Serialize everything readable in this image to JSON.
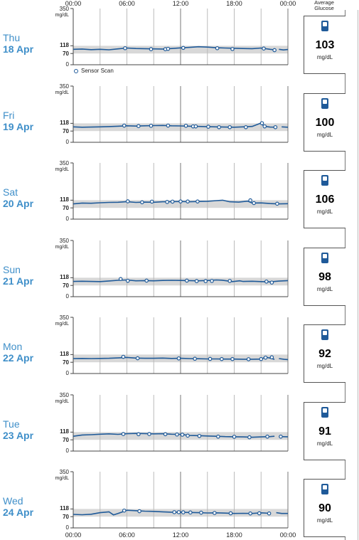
{
  "chart_data": {
    "type": "line",
    "x_ticks": [
      "00:00",
      "06:00",
      "12:00",
      "18:00",
      "00:00"
    ],
    "y_ticks": [
      0,
      70,
      118,
      350
    ],
    "y_unit": "mg/dL",
    "target_range": [
      70,
      118
    ],
    "ylim": [
      0,
      350
    ],
    "xlim_hours": [
      0,
      24
    ],
    "legend": "Sensor Scan",
    "average_header": [
      "Average",
      "Glucose"
    ],
    "days": [
      {
        "dow": "Thu",
        "date": "18 Apr",
        "avg": "103",
        "unit": "mg/dL",
        "trace": [
          [
            0,
            96
          ],
          [
            1,
            98
          ],
          [
            2,
            94
          ],
          [
            3,
            96
          ],
          [
            4,
            93
          ],
          [
            5,
            99
          ],
          [
            6,
            104
          ],
          [
            7,
            101
          ],
          [
            8,
            100
          ],
          [
            9,
            99
          ],
          [
            10,
            98
          ],
          [
            11,
            101
          ],
          [
            12,
            105
          ],
          [
            13,
            108
          ],
          [
            14,
            112
          ],
          [
            15,
            110
          ],
          [
            16,
            106
          ],
          [
            17,
            104
          ],
          [
            18,
            103
          ],
          [
            19,
            101
          ],
          [
            20,
            100
          ],
          [
            21,
            104
          ],
          [
            22,
            96
          ],
          [
            22.5,
            93
          ]
        ],
        "trace2": [
          [
            23,
            96
          ],
          [
            23.5,
            92
          ],
          [
            24,
            95
          ]
        ],
        "scans": [
          [
            5.8,
            103
          ],
          [
            8.7,
            97
          ],
          [
            10.3,
            97
          ],
          [
            10.6,
            99
          ],
          [
            12.3,
            105
          ],
          [
            16.1,
            103
          ],
          [
            17.8,
            98
          ],
          [
            21.3,
            101
          ],
          [
            22.5,
            91
          ]
        ]
      },
      {
        "dow": "Fri",
        "date": "19 Apr",
        "avg": "100",
        "unit": "mg/dL",
        "trace": [
          [
            0,
            96
          ],
          [
            1,
            94
          ],
          [
            2,
            95
          ],
          [
            3,
            96
          ],
          [
            4,
            98
          ],
          [
            5,
            100
          ],
          [
            6,
            103
          ],
          [
            7,
            101
          ],
          [
            8,
            103
          ],
          [
            9,
            104
          ],
          [
            10,
            105
          ],
          [
            11,
            103
          ],
          [
            12,
            102
          ],
          [
            13,
            100
          ],
          [
            14,
            99
          ],
          [
            15,
            97
          ],
          [
            16,
            96
          ],
          [
            17,
            95
          ],
          [
            18,
            94
          ],
          [
            19,
            96
          ],
          [
            20,
            99
          ],
          [
            21,
            120
          ],
          [
            21.3,
            100
          ],
          [
            22,
            95
          ],
          [
            22.6,
            94
          ]
        ],
        "trace2": [
          [
            23.3,
            96
          ],
          [
            24,
            94
          ]
        ],
        "scans": [
          [
            5.7,
            104
          ],
          [
            7.3,
            101
          ],
          [
            8.7,
            103
          ],
          [
            10.6,
            104
          ],
          [
            12.6,
            103
          ],
          [
            13.4,
            99
          ],
          [
            13.7,
            99
          ],
          [
            15.1,
            97
          ],
          [
            16.3,
            94
          ],
          [
            17.5,
            94
          ],
          [
            19.3,
            94
          ],
          [
            21.1,
            119
          ],
          [
            21.4,
            99
          ],
          [
            22.6,
            94
          ]
        ]
      },
      {
        "dow": "Sat",
        "date": "20 Apr",
        "avg": "106",
        "unit": "mg/dL",
        "trace": [
          [
            0,
            95
          ],
          [
            1,
            100
          ],
          [
            2,
            99
          ],
          [
            3,
            102
          ],
          [
            4,
            104
          ],
          [
            5,
            105
          ],
          [
            6,
            109
          ],
          [
            7,
            104
          ],
          [
            8,
            106
          ],
          [
            9,
            105
          ],
          [
            10,
            108
          ],
          [
            11,
            109
          ],
          [
            12,
            110
          ],
          [
            13,
            108
          ],
          [
            14,
            110
          ],
          [
            15,
            111
          ],
          [
            16,
            115
          ],
          [
            16.7,
            118
          ],
          [
            17.5,
            108
          ],
          [
            18.5,
            106
          ],
          [
            19.5,
            112
          ],
          [
            20,
            100
          ],
          [
            21,
            101
          ],
          [
            22,
            97
          ],
          [
            23,
            95
          ],
          [
            24,
            96
          ]
        ],
        "scans": [
          [
            6.1,
            111
          ],
          [
            7.7,
            105
          ],
          [
            8.8,
            109
          ],
          [
            10.5,
            107
          ],
          [
            11.1,
            109
          ],
          [
            12.0,
            110
          ],
          [
            12.8,
            110
          ],
          [
            13.9,
            110
          ],
          [
            19.8,
            117
          ],
          [
            20.2,
            100
          ],
          [
            22.8,
            96
          ]
        ]
      },
      {
        "dow": "Sun",
        "date": "21 Apr",
        "avg": "98",
        "unit": "mg/dL",
        "trace": [
          [
            0,
            95
          ],
          [
            1,
            96
          ],
          [
            2,
            95
          ],
          [
            3,
            94
          ],
          [
            4,
            98
          ],
          [
            5,
            102
          ],
          [
            6,
            104
          ],
          [
            7,
            99
          ],
          [
            8,
            100
          ],
          [
            9,
            99
          ],
          [
            10,
            101
          ],
          [
            11,
            102
          ],
          [
            12,
            101
          ],
          [
            13,
            100
          ],
          [
            14,
            99
          ],
          [
            15,
            101
          ],
          [
            16,
            104
          ],
          [
            16.6,
            103
          ],
          [
            17.3,
            98
          ],
          [
            17.8,
            94
          ],
          [
            18.6,
            99
          ],
          [
            19,
            95
          ],
          [
            20,
            96
          ],
          [
            21,
            94
          ],
          [
            22,
            92
          ],
          [
            23,
            97
          ],
          [
            24,
            100
          ]
        ],
        "scans": [
          [
            5.3,
            110
          ],
          [
            6.1,
            99
          ],
          [
            8.2,
            100
          ],
          [
            12.7,
            100
          ],
          [
            13.8,
            97
          ],
          [
            14.8,
            97
          ],
          [
            15.5,
            98
          ],
          [
            17.5,
            98
          ],
          [
            21.6,
            94
          ],
          [
            22.2,
            88
          ]
        ]
      },
      {
        "dow": "Mon",
        "date": "22 Apr",
        "avg": "92",
        "unit": "mg/dL",
        "trace": [
          [
            0,
            93
          ],
          [
            1,
            94
          ],
          [
            2,
            93
          ],
          [
            3,
            94
          ],
          [
            4,
            95
          ],
          [
            5,
            97
          ],
          [
            6,
            100
          ],
          [
            7,
            96
          ],
          [
            8,
            95
          ],
          [
            9,
            95
          ],
          [
            10,
            96
          ],
          [
            11,
            94
          ],
          [
            12,
            95
          ],
          [
            13,
            93
          ],
          [
            14,
            92
          ],
          [
            15,
            91
          ],
          [
            16,
            91
          ],
          [
            17,
            90
          ],
          [
            18,
            90
          ],
          [
            19,
            89
          ],
          [
            20,
            89
          ],
          [
            21,
            90
          ],
          [
            21.5,
            102
          ],
          [
            22,
            96
          ],
          [
            22.5,
            88
          ]
        ],
        "trace2": [
          [
            23,
            93
          ],
          [
            23.6,
            88
          ],
          [
            24,
            87
          ]
        ],
        "scans": [
          [
            5.6,
            104
          ],
          [
            7.2,
            95
          ],
          [
            11.8,
            94
          ],
          [
            13.6,
            92
          ],
          [
            15.3,
            91
          ],
          [
            16.6,
            90
          ],
          [
            17.8,
            90
          ],
          [
            19.6,
            89
          ],
          [
            21.0,
            90
          ],
          [
            21.5,
            99
          ],
          [
            22.2,
            101
          ]
        ]
      },
      {
        "dow": "Tue",
        "date": "23 Apr",
        "avg": "91",
        "unit": "mg/dL",
        "trace": [
          [
            0,
            92
          ],
          [
            1,
            100
          ],
          [
            2,
            102
          ],
          [
            3,
            105
          ],
          [
            4,
            107
          ],
          [
            5,
            104
          ],
          [
            6,
            108
          ],
          [
            7,
            110
          ],
          [
            8,
            109
          ],
          [
            9,
            107
          ],
          [
            10,
            108
          ],
          [
            11,
            105
          ],
          [
            12,
            104
          ],
          [
            13,
            97
          ],
          [
            14,
            96
          ],
          [
            15,
            94
          ],
          [
            16,
            92
          ],
          [
            17,
            90
          ],
          [
            18,
            89
          ],
          [
            19,
            88
          ],
          [
            20,
            86
          ],
          [
            21,
            88
          ],
          [
            22,
            90
          ],
          [
            22.5,
            92
          ]
        ],
        "trace2": [
          [
            23,
            90
          ],
          [
            24,
            89
          ]
        ],
        "scans": [
          [
            5.6,
            106
          ],
          [
            7.3,
            105
          ],
          [
            8.5,
            106
          ],
          [
            10.3,
            105
          ],
          [
            11.6,
            103
          ],
          [
            12.2,
            102
          ],
          [
            12.8,
            96
          ],
          [
            14.1,
            94
          ],
          [
            16.2,
            90
          ],
          [
            18.0,
            89
          ],
          [
            19.7,
            86
          ],
          [
            21.7,
            90
          ],
          [
            23.2,
            90
          ]
        ]
      },
      {
        "dow": "Wed",
        "date": "24 Apr",
        "avg": "90",
        "unit": "mg/dL",
        "trace": [
          [
            0,
            84
          ],
          [
            1,
            82
          ],
          [
            2,
            85
          ],
          [
            3,
            95
          ],
          [
            4,
            100
          ],
          [
            4.5,
            81
          ],
          [
            5,
            90
          ],
          [
            6,
            110
          ],
          [
            7,
            107
          ],
          [
            8,
            104
          ],
          [
            9,
            103
          ],
          [
            10,
            100
          ],
          [
            11,
            98
          ],
          [
            12,
            97
          ],
          [
            13,
            96
          ],
          [
            14,
            95
          ],
          [
            15,
            93
          ],
          [
            16,
            94
          ],
          [
            17,
            92
          ],
          [
            18,
            90
          ],
          [
            19,
            91
          ],
          [
            20,
            90
          ],
          [
            21,
            94
          ],
          [
            22,
            91
          ]
        ],
        "trace2": [
          [
            22.7,
            95
          ],
          [
            23.3,
            90
          ],
          [
            24,
            90
          ]
        ],
        "scans": [
          [
            5.7,
            108
          ],
          [
            7.4,
            104
          ],
          [
            11.3,
            98
          ],
          [
            11.8,
            98
          ],
          [
            12.3,
            97
          ],
          [
            13.1,
            96
          ],
          [
            14.3,
            95
          ],
          [
            15.8,
            93
          ],
          [
            17.6,
            91
          ],
          [
            19.8,
            90
          ],
          [
            20.8,
            91
          ],
          [
            21.9,
            90
          ]
        ]
      }
    ]
  },
  "icons": {
    "card": "sensor-reader-icon"
  },
  "colors": {
    "line": "#1f5a99",
    "band": "#d8d8d8",
    "day": "#3f8fc9"
  }
}
